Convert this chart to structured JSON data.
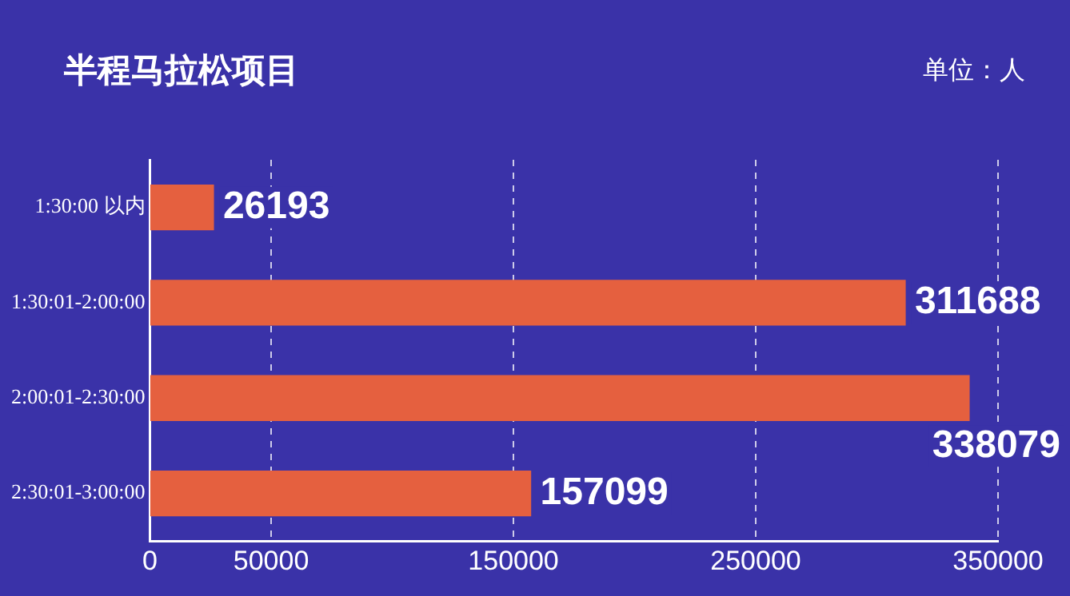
{
  "chart_data": {
    "type": "bar",
    "orientation": "horizontal",
    "title": "半程马拉松项目",
    "annotations": [
      "单位：人"
    ],
    "categories": [
      "1:30:00 以内",
      "1:30:01-2:00:00",
      "2:00:01-2:30:00",
      "2:30:01-3:00:00"
    ],
    "values": [
      26193,
      311688,
      338079,
      157099
    ],
    "color": "#e5603f",
    "xlim": [
      0,
      350000
    ],
    "xticks": [
      0,
      50000,
      150000,
      250000,
      350000
    ],
    "grid": "x",
    "line_style": "dashed",
    "data_labels": true,
    "legend": false
  }
}
